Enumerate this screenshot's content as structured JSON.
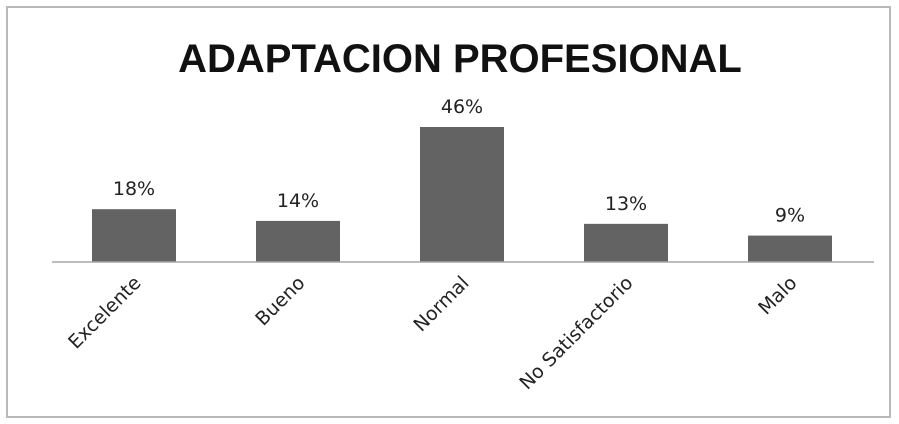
{
  "chart_data": {
    "type": "bar",
    "title": "ADAPTACION PROFESIONAL",
    "categories": [
      "Excelente",
      "Bueno",
      "Normal",
      "No Satisfactorio",
      "Malo"
    ],
    "values": [
      18,
      14,
      46,
      13,
      9
    ],
    "value_labels": [
      "18%",
      "14%",
      "46%",
      "13%",
      "9%"
    ],
    "unit": "%",
    "ylim": [
      0,
      46
    ],
    "grid": false,
    "legend": "none",
    "colors": {
      "bar": "#636363",
      "axis": "#a6a6a6",
      "frame": "#b8b8b8"
    }
  }
}
